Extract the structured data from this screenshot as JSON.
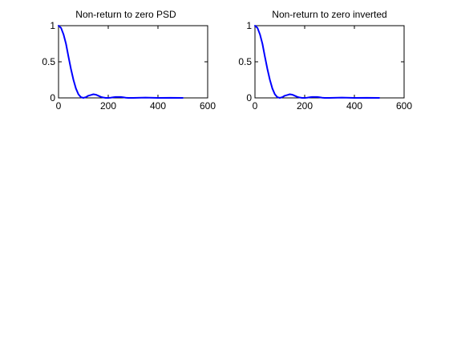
{
  "chart_data": [
    {
      "type": "line",
      "title": "Non-return to zero PSD",
      "xlabel": "",
      "ylabel": "",
      "xlim": [
        0,
        600
      ],
      "ylim": [
        0,
        1
      ],
      "xticks": [
        "0",
        "200",
        "400",
        "600"
      ],
      "yticks": [
        "0",
        "0.5",
        "1"
      ],
      "grid": false,
      "series": [
        {
          "color": "#0000ff",
          "x": [
            0,
            10,
            20,
            30,
            40,
            50,
            60,
            70,
            80,
            90,
            100,
            110,
            120,
            130,
            140,
            150,
            160,
            170,
            180,
            190,
            200,
            210,
            220,
            230,
            240,
            250,
            260,
            270,
            280,
            290,
            300,
            350,
            400,
            450,
            500
          ],
          "y": [
            1.0,
            0.97,
            0.88,
            0.75,
            0.57,
            0.4,
            0.25,
            0.13,
            0.05,
            0.01,
            0.0,
            0.01,
            0.03,
            0.04,
            0.05,
            0.045,
            0.03,
            0.015,
            0.005,
            0.0,
            0.0,
            0.003,
            0.008,
            0.012,
            0.013,
            0.012,
            0.008,
            0.003,
            0.0,
            0.0,
            0.0,
            0.004,
            0.0,
            0.002,
            0.0
          ]
        }
      ]
    },
    {
      "type": "line",
      "title": "Non-return to zero inverted",
      "xlabel": "",
      "ylabel": "",
      "xlim": [
        0,
        600
      ],
      "ylim": [
        0,
        1
      ],
      "xticks": [
        "0",
        "200",
        "400",
        "600"
      ],
      "yticks": [
        "0",
        "0.5",
        "1"
      ],
      "grid": false,
      "series": [
        {
          "color": "#0000ff",
          "x": [
            0,
            10,
            20,
            30,
            40,
            50,
            60,
            70,
            80,
            90,
            100,
            110,
            120,
            130,
            140,
            150,
            160,
            170,
            180,
            190,
            200,
            210,
            220,
            230,
            240,
            250,
            260,
            270,
            280,
            290,
            300,
            350,
            400,
            450,
            500
          ],
          "y": [
            1.0,
            0.97,
            0.88,
            0.75,
            0.57,
            0.4,
            0.25,
            0.13,
            0.05,
            0.01,
            0.0,
            0.01,
            0.03,
            0.04,
            0.05,
            0.045,
            0.03,
            0.015,
            0.005,
            0.0,
            0.0,
            0.003,
            0.008,
            0.012,
            0.013,
            0.012,
            0.008,
            0.003,
            0.0,
            0.0,
            0.0,
            0.004,
            0.0,
            0.002,
            0.0
          ]
        }
      ]
    }
  ]
}
